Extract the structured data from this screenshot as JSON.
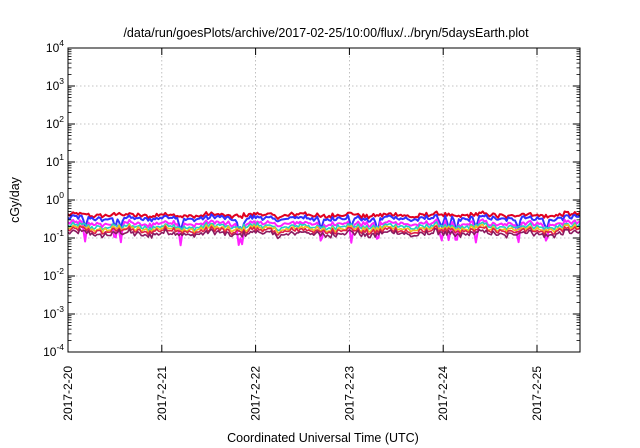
{
  "chart_data": {
    "type": "line",
    "title": "/data/run/goesPlots/archive/2017-02-25/10:00/flux/../bryn/5daysEarth.plot",
    "xlabel": "Coordinated Universal Time (UTC)",
    "ylabel": "cGy/day",
    "y_scale": "log",
    "ylim": [
      0.0001,
      10000
    ],
    "y_ticks": [
      {
        "base": "10",
        "exp": "-4"
      },
      {
        "base": "10",
        "exp": "-3"
      },
      {
        "base": "10",
        "exp": "-2"
      },
      {
        "base": "10",
        "exp": "-1"
      },
      {
        "base": "10",
        "exp": "0"
      },
      {
        "base": "10",
        "exp": "1"
      },
      {
        "base": "10",
        "exp": "2"
      },
      {
        "base": "10",
        "exp": "3"
      },
      {
        "base": "10",
        "exp": "4"
      }
    ],
    "x_ticks": [
      "2017-2-20",
      "2017-2-21",
      "2017-2-22",
      "2017-2-23",
      "2017-2-24",
      "2017-2-25"
    ],
    "xlim": [
      "2017-02-20T00:00",
      "2017-02-25T11:00"
    ],
    "grid": true,
    "series": [
      {
        "color": "#e00020",
        "level": 0.4,
        "dips": false
      },
      {
        "color": "#3030ff",
        "level": 0.33,
        "dips": true
      },
      {
        "color": "#ff22ff",
        "level": 0.24,
        "dips": true
      },
      {
        "color": "#20d0c0",
        "level": 0.2,
        "dips": false
      },
      {
        "color": "#f0c020",
        "level": 0.175,
        "dips": false
      },
      {
        "color": "#e0204a",
        "level": 0.155,
        "dips": false
      },
      {
        "color": "#8a1a60",
        "level": 0.13,
        "dips": false
      }
    ],
    "dip_days": [
      0.18,
      0.5,
      0.56,
      1.2,
      1.82,
      1.86,
      2.7,
      3.02,
      3.3,
      3.98,
      4.06,
      4.14,
      4.35,
      4.8,
      5.1
    ]
  }
}
